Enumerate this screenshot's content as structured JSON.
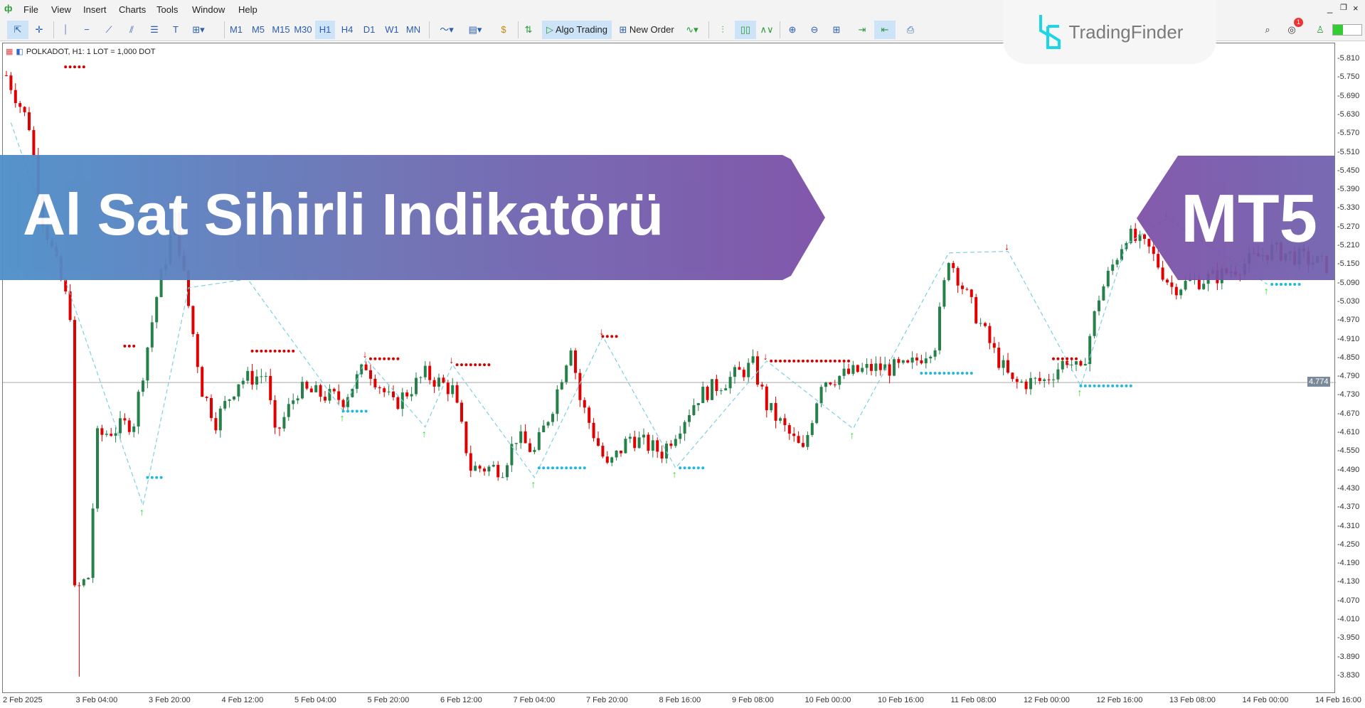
{
  "menu": {
    "items": [
      "File",
      "View",
      "Insert",
      "Charts",
      "Tools",
      "Window",
      "Help"
    ]
  },
  "toolbar": {
    "timeframes": [
      "M1",
      "M5",
      "M15",
      "M30",
      "H1",
      "H4",
      "D1",
      "W1",
      "MN"
    ],
    "active_timeframe": "H1",
    "algo_trading": "Algo Trading",
    "new_order": "New Order",
    "notification_count": "1"
  },
  "logo": {
    "text": "TradingFinder"
  },
  "banner": {
    "title": "Al Sat Sihirli Indikatörü",
    "platform": "MT5",
    "colors": {
      "start": "#4d8fc9",
      "end": "#7b4ea6"
    }
  },
  "chart": {
    "info": "POLKADOT, H1:  1 LOT = 1,000 DOT",
    "current_price": "4.774",
    "price_labels": [
      "5.810",
      "5.750",
      "5.690",
      "5.630",
      "5.570",
      "5.510",
      "5.450",
      "5.390",
      "5.330",
      "5.270",
      "5.210",
      "5.150",
      "5.090",
      "5.030",
      "4.970",
      "4.910",
      "4.850",
      "4.790",
      "4.730",
      "4.670",
      "4.610",
      "4.550",
      "4.490",
      "4.430",
      "4.370",
      "4.310",
      "4.250",
      "4.190",
      "4.130",
      "4.070",
      "4.010",
      "3.950",
      "3.890",
      "3.830"
    ],
    "time_labels": [
      "2 Feb 2025",
      "3 Feb 04:00",
      "3 Feb 20:00",
      "4 Feb 12:00",
      "5 Feb 04:00",
      "5 Feb 20:00",
      "6 Feb 12:00",
      "7 Feb 04:00",
      "7 Feb 20:00",
      "8 Feb 16:00",
      "9 Feb 08:00",
      "10 Feb 00:00",
      "10 Feb 16:00",
      "11 Feb 08:00",
      "12 Feb 00:00",
      "12 Feb 16:00",
      "13 Feb 08:00",
      "14 Feb 00:00",
      "14 Feb 16:00"
    ],
    "colors": {
      "bull": "#26804a",
      "bear": "#e00000",
      "buy": "#1fb8e0",
      "sell": "#d40000",
      "arrow_up": "#22dd22",
      "zigzag": "#7fd0e0"
    },
    "price_path": [
      [
        0,
        5.76
      ],
      [
        5,
        5.6
      ],
      [
        8,
        5.3
      ],
      [
        14,
        5.0
      ],
      [
        15,
        4.1
      ],
      [
        18,
        4.15
      ],
      [
        20,
        4.6
      ],
      [
        28,
        4.65
      ],
      [
        33,
        5.05
      ],
      [
        37,
        5.3
      ],
      [
        40,
        5.02
      ],
      [
        43,
        4.75
      ],
      [
        46,
        4.65
      ],
      [
        51,
        4.78
      ],
      [
        57,
        4.8
      ],
      [
        59,
        4.6
      ],
      [
        64,
        4.75
      ],
      [
        74,
        4.72
      ],
      [
        79,
        4.83
      ],
      [
        85,
        4.7
      ],
      [
        92,
        4.8
      ],
      [
        98,
        4.75
      ],
      [
        102,
        4.5
      ],
      [
        109,
        4.5
      ],
      [
        112,
        4.6
      ],
      [
        116,
        4.55
      ],
      [
        120,
        4.7
      ],
      [
        124,
        4.9
      ],
      [
        126,
        4.72
      ],
      [
        132,
        4.5
      ],
      [
        137,
        4.6
      ],
      [
        144,
        4.55
      ],
      [
        152,
        4.73
      ],
      [
        164,
        4.83
      ],
      [
        167,
        4.7
      ],
      [
        175,
        4.55
      ],
      [
        179,
        4.78
      ],
      [
        190,
        4.82
      ],
      [
        198,
        4.82
      ],
      [
        204,
        4.9
      ],
      [
        207,
        5.18
      ],
      [
        211,
        5.05
      ],
      [
        217,
        4.87
      ],
      [
        221,
        4.77
      ],
      [
        228,
        4.78
      ],
      [
        233,
        4.85
      ],
      [
        236,
        4.8
      ],
      [
        240,
        5.05
      ],
      [
        246,
        5.25
      ],
      [
        251,
        5.2
      ],
      [
        256,
        5.08
      ],
      [
        267,
        5.12
      ],
      [
        278,
        5.2
      ],
      [
        290,
        5.15
      ]
    ],
    "low_spike": {
      "bar": 16,
      "price": 3.83
    },
    "zigzag": [
      [
        1,
        5.608
      ],
      [
        30,
        4.38
      ],
      [
        40,
        5.078
      ],
      [
        53,
        5.106
      ],
      [
        74,
        4.682
      ],
      [
        79,
        4.85
      ],
      [
        92,
        4.631
      ],
      [
        98,
        4.831
      ],
      [
        116,
        4.469
      ],
      [
        131,
        4.922
      ],
      [
        147,
        4.5
      ],
      [
        167,
        4.843
      ],
      [
        186,
        4.626
      ],
      [
        207,
        5.19
      ],
      [
        220,
        5.195
      ],
      [
        236,
        4.763
      ],
      [
        246,
        5.218
      ],
      [
        255,
        5.301
      ],
      [
        277,
        5.089
      ]
    ],
    "signals": [
      {
        "type": "buy",
        "bar": 30,
        "price": 4.38
      },
      {
        "type": "buy",
        "bar": 74,
        "price": 4.682
      },
      {
        "type": "buy",
        "bar": 92,
        "price": 4.631
      },
      {
        "type": "buy",
        "bar": 116,
        "price": 4.469
      },
      {
        "type": "buy",
        "bar": 147,
        "price": 4.5
      },
      {
        "type": "buy",
        "bar": 186,
        "price": 4.626
      },
      {
        "type": "buy",
        "bar": 236,
        "price": 4.763
      },
      {
        "type": "buy",
        "bar": 277,
        "price": 5.089
      },
      {
        "type": "sell",
        "bar": 79,
        "price": 4.85
      },
      {
        "type": "sell",
        "bar": 98,
        "price": 4.831
      },
      {
        "type": "sell",
        "bar": 131,
        "price": 4.922
      },
      {
        "type": "sell",
        "bar": 167,
        "price": 4.843
      },
      {
        "type": "sell",
        "bar": 220,
        "price": 5.195
      },
      {
        "type": "sell",
        "bar": 255,
        "price": 5.301
      }
    ],
    "stop_levels": [
      {
        "side": "sell",
        "from": 13,
        "to": 17,
        "price": 5.787
      },
      {
        "side": "sell",
        "from": 26,
        "to": 28,
        "price": 4.891
      },
      {
        "side": "sell",
        "from": 54,
        "to": 63,
        "price": 4.875
      },
      {
        "side": "sell",
        "from": 80,
        "to": 86,
        "price": 4.85
      },
      {
        "side": "sell",
        "from": 99,
        "to": 106,
        "price": 4.831
      },
      {
        "side": "sell",
        "from": 131,
        "to": 134,
        "price": 4.922
      },
      {
        "side": "sell",
        "from": 168,
        "to": 185,
        "price": 4.843
      },
      {
        "side": "sell",
        "from": 230,
        "to": 235,
        "price": 4.85
      },
      {
        "side": "buy",
        "from": 31,
        "to": 34,
        "price": 4.469
      },
      {
        "side": "buy",
        "from": 74,
        "to": 79,
        "price": 4.682
      },
      {
        "side": "buy",
        "from": 117,
        "to": 127,
        "price": 4.5
      },
      {
        "side": "buy",
        "from": 148,
        "to": 153,
        "price": 4.5
      },
      {
        "side": "buy",
        "from": 201,
        "to": 212,
        "price": 4.804
      },
      {
        "side": "buy",
        "from": 236,
        "to": 247,
        "price": 4.763
      },
      {
        "side": "buy",
        "from": 278,
        "to": 284,
        "price": 5.089
      }
    ]
  }
}
